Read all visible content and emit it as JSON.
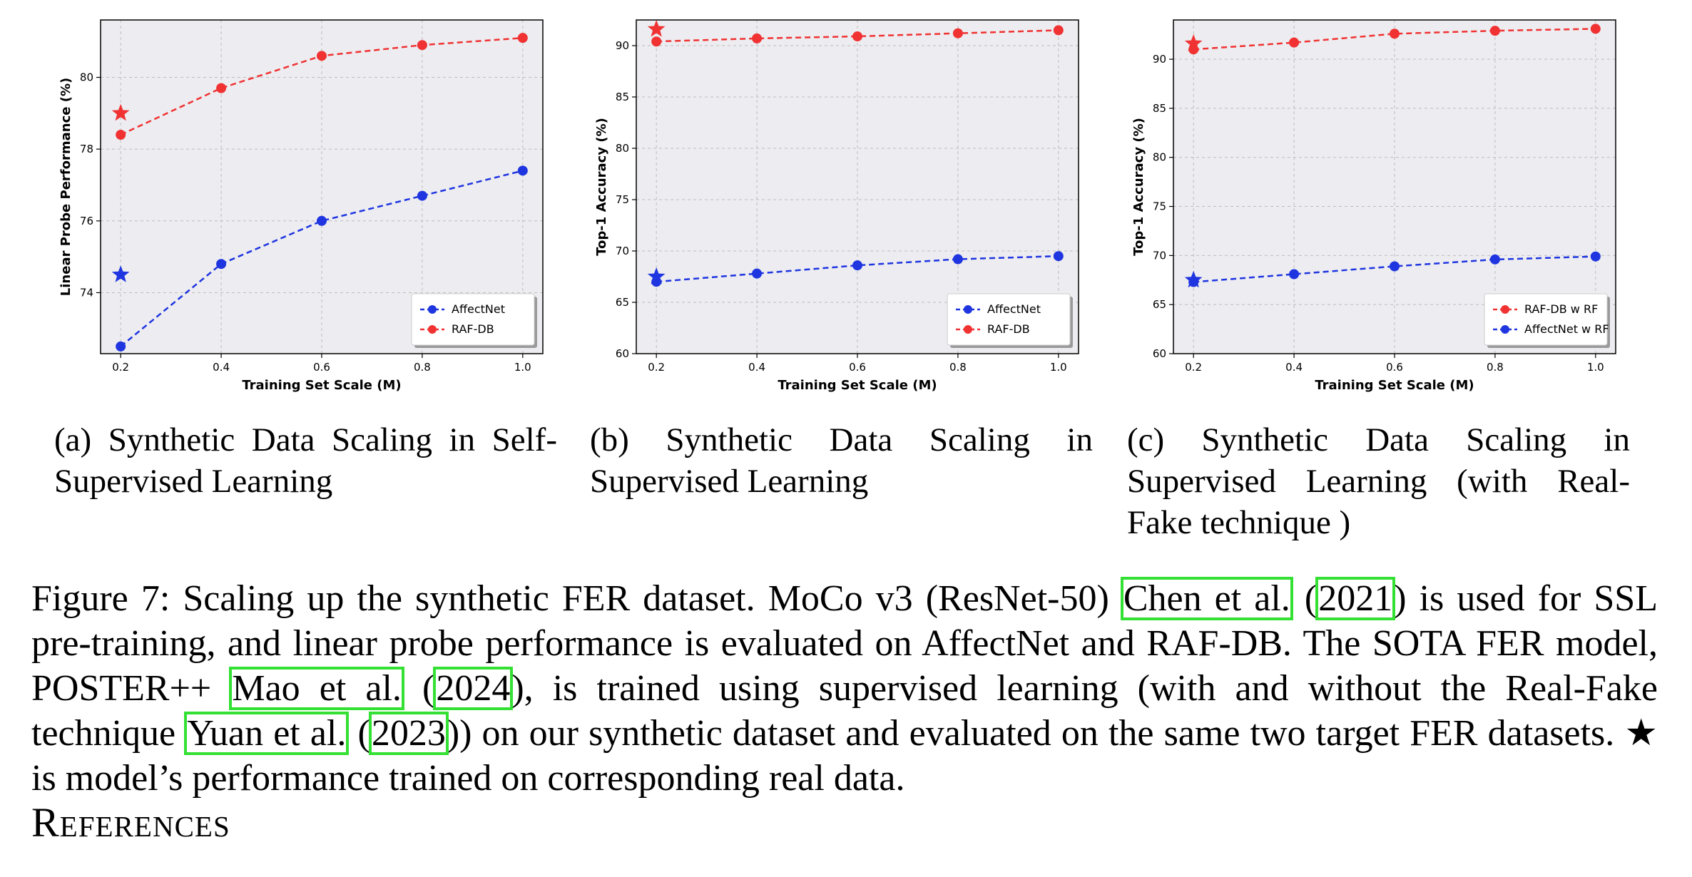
{
  "colors": {
    "red": "#f03232",
    "blue": "#1f35e0",
    "grid": "#bdbdbd",
    "plot_bg": "#ededf1",
    "cite_box": "#33e033"
  },
  "chart_data": [
    {
      "type": "line",
      "xlabel": "Training Set Scale (M)",
      "ylabel": "Linear Probe Performance (%)",
      "x": [
        0.2,
        0.4,
        0.6,
        0.8,
        1.0
      ],
      "xticks": [
        "0.2",
        "0.4",
        "0.6",
        "0.8",
        "1.0"
      ],
      "yticks": [
        "74",
        "76",
        "78",
        "80"
      ],
      "ytick_values": [
        74,
        76,
        78,
        80
      ],
      "xlim": [
        0.16,
        1.04
      ],
      "ylim": [
        72.3,
        81.6
      ],
      "grid": true,
      "legend_position": "lower-right",
      "series": [
        {
          "name": "AffectNet",
          "color": "blue",
          "values": [
            72.5,
            74.8,
            76.0,
            76.7,
            77.4
          ],
          "real": 74.5
        },
        {
          "name": "RAF-DB",
          "color": "red",
          "values": [
            78.4,
            79.7,
            80.6,
            80.9,
            81.1
          ],
          "real": 79.0
        }
      ]
    },
    {
      "type": "line",
      "xlabel": "Training Set Scale (M)",
      "ylabel": "Top-1 Accuracy (%)",
      "x": [
        0.2,
        0.4,
        0.6,
        0.8,
        1.0
      ],
      "xticks": [
        "0.2",
        "0.4",
        "0.6",
        "0.8",
        "1.0"
      ],
      "yticks": [
        "60",
        "65",
        "70",
        "75",
        "80",
        "85",
        "90"
      ],
      "ytick_values": [
        60,
        65,
        70,
        75,
        80,
        85,
        90
      ],
      "xlim": [
        0.16,
        1.04
      ],
      "ylim": [
        60,
        92.5
      ],
      "grid": true,
      "legend_position": "lower-right",
      "series": [
        {
          "name": "AffectNet",
          "color": "blue",
          "values": [
            67.0,
            67.8,
            68.6,
            69.2,
            69.5
          ],
          "real": 67.5
        },
        {
          "name": "RAF-DB",
          "color": "red",
          "values": [
            90.4,
            90.7,
            90.9,
            91.2,
            91.5
          ],
          "real": 91.6
        }
      ]
    },
    {
      "type": "line",
      "xlabel": "Training Set Scale (M)",
      "ylabel": "Top-1 Accuracy (%)",
      "x": [
        0.2,
        0.4,
        0.6,
        0.8,
        1.0
      ],
      "xticks": [
        "0.2",
        "0.4",
        "0.6",
        "0.8",
        "1.0"
      ],
      "yticks": [
        "60",
        "65",
        "70",
        "75",
        "80",
        "85",
        "90"
      ],
      "ytick_values": [
        60,
        65,
        70,
        75,
        80,
        85,
        90
      ],
      "xlim": [
        0.16,
        1.04
      ],
      "ylim": [
        60,
        94
      ],
      "grid": true,
      "legend_position": "lower-right",
      "series": [
        {
          "name": "RAF-DB w RF",
          "color": "red",
          "values": [
            91.0,
            91.7,
            92.6,
            92.9,
            93.1
          ],
          "real": 91.6
        },
        {
          "name": "AffectNet w RF",
          "color": "blue",
          "values": [
            67.3,
            68.1,
            68.9,
            69.6,
            69.9
          ],
          "real": 67.5
        }
      ]
    }
  ],
  "subcaptions": {
    "a": "(a) Synthetic Data Scaling in Self-Supervised Learning",
    "b": "(b) Synthetic Data Scaling in Supervised Learning",
    "c": "(c) Synthetic Data Scaling in Supervised Learning (with Real-Fake technique )"
  },
  "caption": {
    "p1": "Figure 7: Scaling up the synthetic FER dataset. MoCo v3 (ResNet-50) ",
    "cite1_author": "Chen et al.",
    "p2": " (",
    "cite1_year": "2021",
    "p3": ") is used for SSL pre-training, and linear probe performance is evaluated on AffectNet and RAF-DB. The SOTA FER model, POSTER++ ",
    "cite2_author": "Mao et al.",
    "p4": " (",
    "cite2_year": "2024",
    "p5": "), is trained using supervised learning (with and without the Real-Fake technique ",
    "cite3_author": "Yuan et al.",
    "p6": " (",
    "cite3_year": "2023",
    "p7": ")) on our synthetic dataset and evaluated on the same two target FER datasets. ★ is model’s performance trained on corresponding real data."
  },
  "references_heading": "References"
}
